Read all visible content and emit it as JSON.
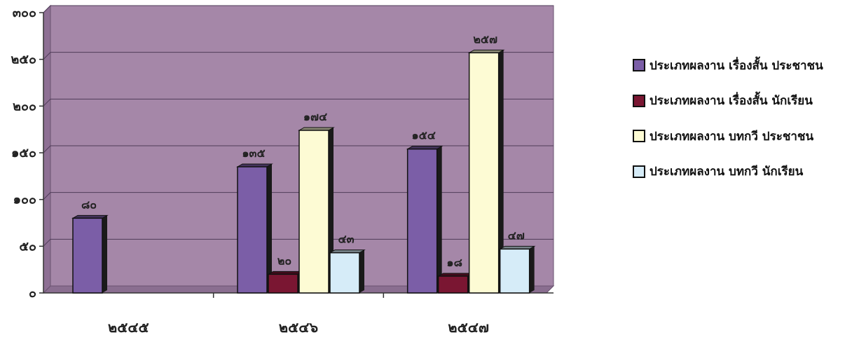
{
  "chart_data": {
    "type": "bar",
    "categories": [
      "๒๕๔๕",
      "๒๕๔๖",
      "๒๕๔๗"
    ],
    "series": [
      {
        "name": "ประเภทผลงาน เรื่องสั้น ประชาชน",
        "values": [
          80,
          135,
          154
        ],
        "labels": [
          "๘๐",
          "๑๓๕",
          "๑๕๔"
        ],
        "color": "#7b5ea7"
      },
      {
        "name": "ประเภทผลงาน เรื่องสั้น นักเรียน",
        "values": [
          null,
          20,
          18
        ],
        "labels": [
          null,
          "๒๐",
          "๑๘"
        ],
        "color": "#7a1632"
      },
      {
        "name": "ประเภทผลงาน บทกวี ประชาชน",
        "values": [
          null,
          174,
          257
        ],
        "labels": [
          null,
          "๑๗๔",
          "๒๕๗"
        ],
        "color": "#fdfbd4"
      },
      {
        "name": "ประเภทผลงาน บทกวี นักเรียน",
        "values": [
          null,
          43,
          47
        ],
        "labels": [
          null,
          "๔๓",
          "๔๗"
        ],
        "color": "#d6ecf8"
      }
    ],
    "y_ticks": [
      "๐",
      "๕๐",
      "๑๐๐",
      "๑๕๐",
      "๒๐๐",
      "๒๕๐",
      "๓๐๐"
    ],
    "ylim": [
      0,
      300
    ],
    "grid": true,
    "legend_position": "right",
    "plot_background": "#a587a8"
  }
}
